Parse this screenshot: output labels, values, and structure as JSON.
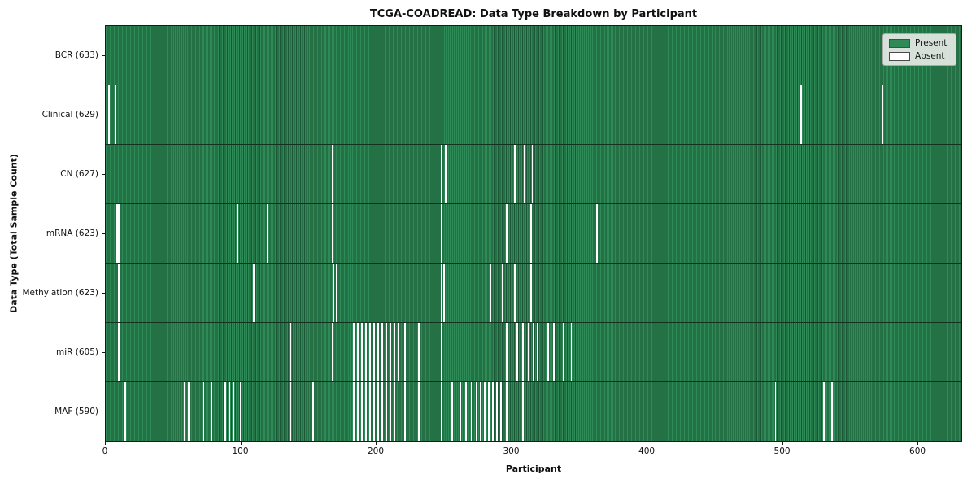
{
  "chart_data": {
    "type": "heatmap",
    "title": "TCGA-COADREAD: Data Type Breakdown by Participant",
    "xlabel": "Participant",
    "ylabel": "Data Type (Total Sample Count)",
    "x_range": [
      0,
      633
    ],
    "x_ticks": [
      0,
      100,
      200,
      300,
      400,
      500,
      600
    ],
    "grid": false,
    "legend_position": "upper right",
    "legend": {
      "present_label": "Present",
      "absent_label": "Absent"
    },
    "colors": {
      "present": "#2E8B57",
      "present_edge": "#1b5736",
      "absent": "#FFFFFF"
    },
    "value_encoding": "green cell = data type present for participant, white stripe = absent",
    "rows": [
      {
        "name": "bcr",
        "label": "BCR (633)",
        "data_type": "BCR",
        "total_sample_count": 633,
        "absent_participants": []
      },
      {
        "name": "clinical",
        "label": "Clinical (629)",
        "data_type": "Clinical",
        "total_sample_count": 629,
        "absent_participants": [
          2,
          7,
          514,
          574
        ]
      },
      {
        "name": "cn",
        "label": "CN (627)",
        "data_type": "CN",
        "total_sample_count": 627,
        "absent_participants": [
          167,
          248,
          251,
          302,
          309,
          315
        ]
      },
      {
        "name": "mrna",
        "label": "mRNA (623)",
        "data_type": "mRNA",
        "total_sample_count": 623,
        "absent_participants": [
          8,
          9,
          97,
          119,
          167,
          248,
          296,
          303,
          314,
          363
        ]
      },
      {
        "name": "methylation",
        "label": "Methylation (623)",
        "data_type": "Methylation",
        "total_sample_count": 623,
        "absent_participants": [
          9,
          109,
          168,
          170,
          248,
          250,
          284,
          293,
          302,
          314
        ]
      },
      {
        "name": "mir",
        "label": "miR (605)",
        "data_type": "miR",
        "total_sample_count": 605,
        "absent_participants": [
          9,
          136,
          167,
          183,
          186,
          189,
          192,
          195,
          198,
          201,
          204,
          207,
          210,
          213,
          216,
          221,
          231,
          248,
          296,
          304,
          308,
          312,
          316,
          319,
          327,
          331,
          338,
          344
        ]
      },
      {
        "name": "maf",
        "label": "MAF (590)",
        "data_type": "MAF",
        "total_sample_count": 590,
        "absent_participants": [
          10,
          14,
          58,
          61,
          72,
          78,
          88,
          91,
          94,
          99,
          136,
          153,
          183,
          186,
          189,
          192,
          195,
          198,
          201,
          204,
          207,
          210,
          213,
          221,
          231,
          248,
          252,
          256,
          262,
          266,
          270,
          274,
          277,
          280,
          283,
          286,
          289,
          292,
          296,
          308,
          495,
          531,
          537
        ]
      }
    ]
  }
}
